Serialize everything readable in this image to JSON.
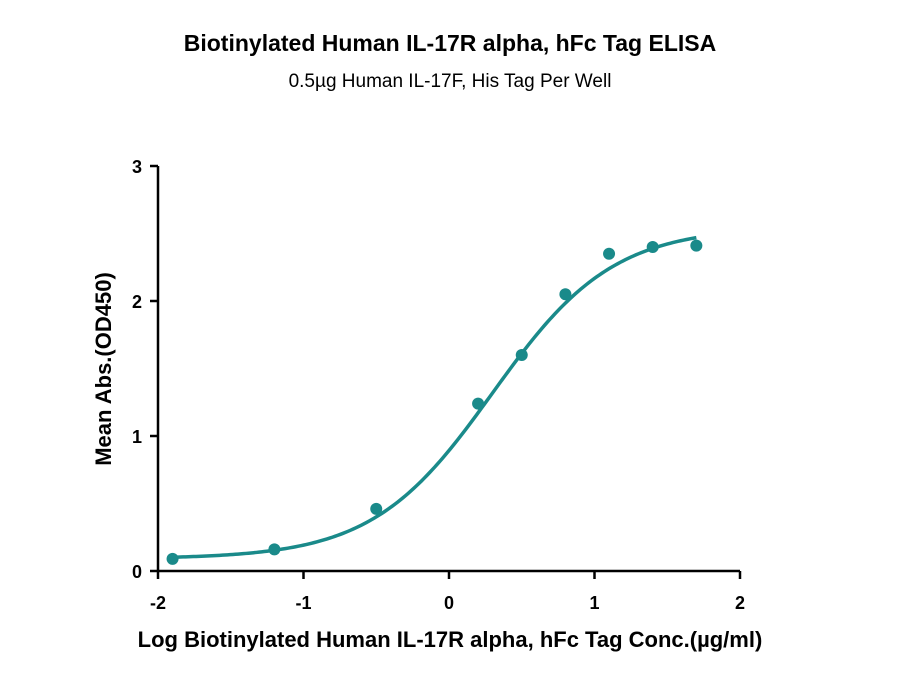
{
  "chart_data": {
    "type": "scatter",
    "title": "Biotinylated Human IL-17R alpha, hFc Tag ELISA",
    "subtitle": "0.5µg Human IL-17F, His Tag Per Well",
    "xlabel": "Log Biotinylated Human IL-17R alpha, hFc Tag Conc.(µg/ml)",
    "ylabel": "Mean Abs.(OD450)",
    "xlim": [
      -2,
      2
    ],
    "ylim": [
      0,
      3
    ],
    "x_ticks": [
      "-2",
      "-1",
      "0",
      "1",
      "2"
    ],
    "y_ticks": [
      "0",
      "1",
      "2",
      "3"
    ],
    "grid": false,
    "series": [
      {
        "color": "#1a8a8a",
        "x": [
          -1.9,
          -1.2,
          -0.5,
          0.2,
          0.5,
          0.8,
          1.1,
          1.4,
          1.7
        ],
        "y": [
          0.09,
          0.16,
          0.46,
          1.24,
          1.6,
          2.05,
          2.35,
          2.4,
          2.41
        ]
      }
    ],
    "fit_curve": {
      "type": "4PL",
      "color": "#1a8a8a",
      "bottom": 0.09,
      "top": 2.55,
      "logEC50": 0.3,
      "hill": 1.05,
      "x_range": [
        -1.9,
        1.7
      ]
    }
  }
}
